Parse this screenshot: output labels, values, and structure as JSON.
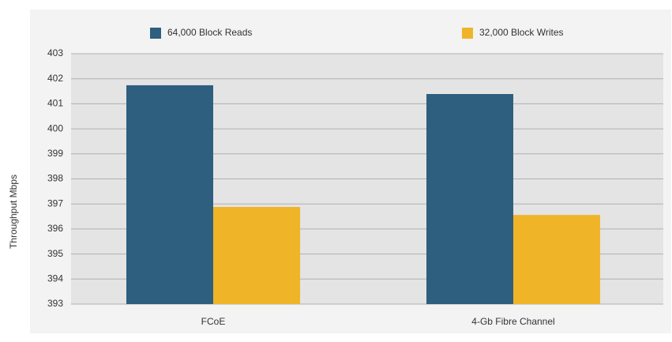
{
  "chart_data": {
    "type": "bar",
    "categories": [
      "FCoE",
      "4-Gb Fibre Channel"
    ],
    "series": [
      {
        "name": "64,000 Block Reads",
        "color": "#2e5f7e",
        "values": [
          401.74,
          401.39
        ]
      },
      {
        "name": "32,000 Block Writes",
        "color": "#f0b429",
        "values": [
          396.88,
          396.56
        ]
      }
    ],
    "y_label": "Throughput Mbps",
    "ylim": [
      393,
      403
    ],
    "yticks": [
      393,
      394,
      395,
      396,
      397,
      398,
      399,
      400,
      401,
      402,
      403
    ],
    "grid": true,
    "legend": "top"
  }
}
